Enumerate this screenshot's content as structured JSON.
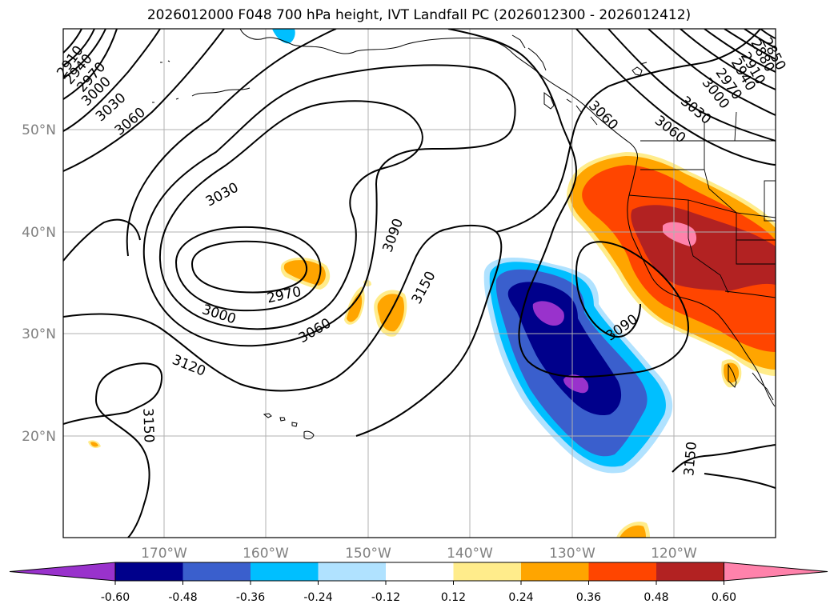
{
  "title": "2026012000 F048 700 hPa height, IVT Landfall PC (2026012300 - 2026012412)",
  "lat_labels": [
    "50°N",
    "40°N",
    "30°N",
    "20°N"
  ],
  "lon_labels": [
    "170°W",
    "160°W",
    "150°W",
    "140°W",
    "130°W",
    "120°W"
  ],
  "contour_labels": [
    "2910",
    "2940",
    "2970",
    "3000",
    "3030",
    "3060",
    "3030",
    "2970",
    "3000",
    "3060",
    "3090",
    "3150",
    "3120",
    "3150",
    "3090",
    "3060",
    "3030",
    "3000",
    "2970",
    "2940",
    "2910",
    "2880",
    "2850",
    "3060",
    "3150"
  ],
  "colorbar": {
    "tick_labels": [
      "-0.60",
      "-0.48",
      "-0.36",
      "-0.24",
      "-0.12",
      "0.12",
      "0.24",
      "0.36",
      "0.48",
      "0.60"
    ],
    "colors": [
      "#9932cc",
      "#00008b",
      "#3a5fcd",
      "#00bfff",
      "#b0e2ff",
      "#ffffff",
      "#ffec8b",
      "#ffa500",
      "#ff4500",
      "#b22222",
      "#ff82ab"
    ]
  }
}
